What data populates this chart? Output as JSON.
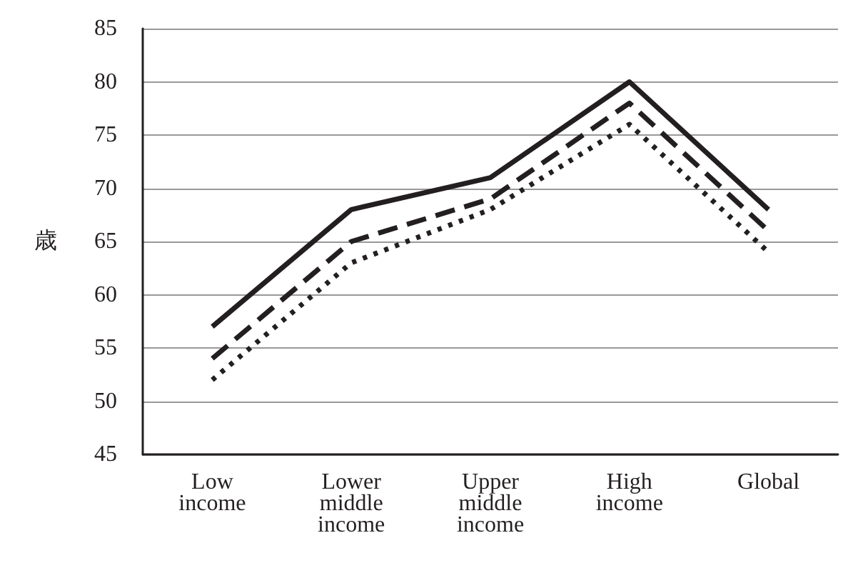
{
  "chart_data": {
    "type": "line",
    "ylabel": "歳",
    "categories": [
      "Low income",
      "Lower middle income",
      "Upper middle income",
      "High income",
      "Global"
    ],
    "series": [
      {
        "color": "#231f20",
        "line_style": "solid",
        "values": [
          57,
          68,
          71,
          80,
          68
        ]
      },
      {
        "color": "#231f20",
        "line_style": "dashed",
        "values": [
          54,
          65,
          69,
          78,
          66
        ]
      },
      {
        "color": "#231f20",
        "line_style": "dotted",
        "values": [
          52,
          63,
          68,
          76,
          64
        ]
      }
    ],
    "ylim": [
      45,
      85
    ],
    "yticks": [
      45,
      50,
      55,
      60,
      65,
      70,
      75,
      80,
      85
    ],
    "grid": "y",
    "marker": "none"
  }
}
